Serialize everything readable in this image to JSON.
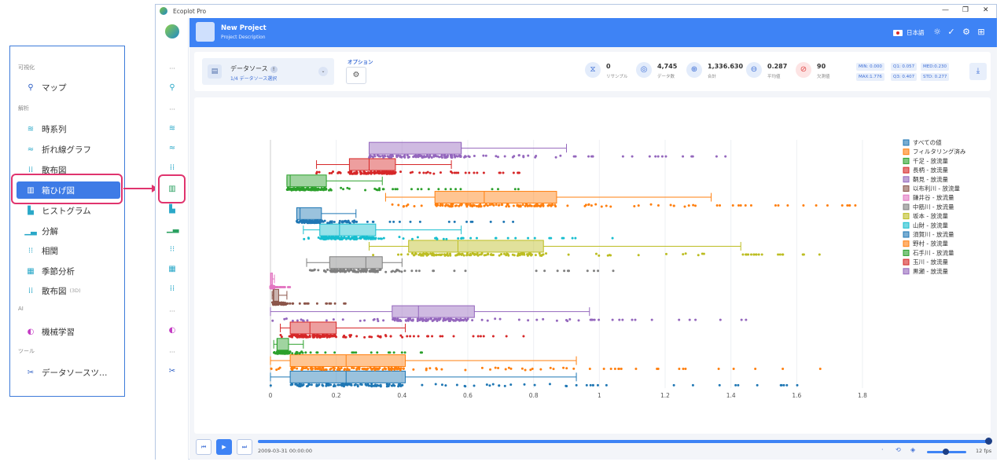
{
  "window": {
    "title": "Ecoplot Pro",
    "controls": [
      "—",
      "❐",
      "✕"
    ]
  },
  "project": {
    "title": "New Project",
    "description": "Project Description"
  },
  "header": {
    "language": "日本語"
  },
  "menu": {
    "sections": [
      {
        "label": "可視化",
        "items": [
          {
            "label": "マップ",
            "icon": "map-pin"
          }
        ]
      },
      {
        "label": "解析",
        "items": [
          {
            "label": "時系列",
            "icon": "timeseries"
          },
          {
            "label": "折れ線グラフ",
            "icon": "line"
          },
          {
            "label": "散布図",
            "icon": "scatter"
          },
          {
            "label": "箱ひげ図",
            "icon": "boxplot",
            "active": true
          },
          {
            "label": "ヒストグラム",
            "icon": "histogram"
          },
          {
            "label": "分解",
            "icon": "decompose"
          },
          {
            "label": "相関",
            "icon": "correlation"
          },
          {
            "label": "季節分析",
            "icon": "seasonal"
          },
          {
            "label": "散布図",
            "icon": "scatter3d",
            "tag": "(3D)"
          }
        ]
      },
      {
        "label": "AI",
        "items": [
          {
            "label": "機械学習",
            "icon": "ml"
          }
        ]
      },
      {
        "label": "ツール",
        "items": [
          {
            "label": "データソースツ…",
            "icon": "tools"
          }
        ]
      }
    ]
  },
  "toolbar": {
    "datasource_title": "データソース",
    "datasource_sub": "1/4 データソース選択",
    "options_label": "オプション",
    "stats": [
      {
        "value": "0",
        "label": "リサンプル",
        "icon": "resample"
      },
      {
        "value": "4,745",
        "label": "データ数",
        "icon": "count"
      },
      {
        "value": "1,336.630",
        "label": "合計",
        "icon": "sum"
      },
      {
        "value": "0.287",
        "label": "平均値",
        "icon": "mean"
      },
      {
        "value": "90",
        "label": "欠測値",
        "icon": "missing"
      }
    ],
    "chips": [
      "MIN: 0.000",
      "Q1: 0.057",
      "MED:0.230",
      "MAX:1.776",
      "Q3: 0.407",
      "STD: 0.277"
    ]
  },
  "chart_data": {
    "type": "boxplot-horizontal",
    "xlim": [
      0,
      1.8
    ],
    "xticks": [
      "0",
      "0.2",
      "0.4",
      "0.6",
      "0.8",
      "1",
      "1.2",
      "1.4",
      "1.6",
      "1.8"
    ],
    "legend_position": "right",
    "series": [
      {
        "name": "すべての値",
        "color": "#1f77b4",
        "min": 0,
        "q1": 0.06,
        "med": 0.23,
        "q3": 0.41,
        "max": 0.93,
        "outlier_max": 1.78
      },
      {
        "name": "フィルタリング済み",
        "color": "#ff7f0e",
        "min": 0,
        "q1": 0.06,
        "med": 0.23,
        "q3": 0.41,
        "max": 0.93,
        "outlier_max": 1.78
      },
      {
        "name": "千足 - 放流量",
        "color": "#2ca02c",
        "min": 0.01,
        "q1": 0.02,
        "med": 0.02,
        "q3": 0.055,
        "max": 0.1,
        "outlier_max": 0.47
      },
      {
        "name": "長柄 - 放流量",
        "color": "#d62728",
        "min": 0.03,
        "q1": 0.06,
        "med": 0.12,
        "q3": 0.2,
        "max": 0.41,
        "outlier_max": 0.77
      },
      {
        "name": "鞆見 - 放流量",
        "color": "#9467bd",
        "min": 0,
        "q1": 0.37,
        "med": 0.45,
        "q3": 0.62,
        "max": 0.97,
        "outlier_max": 1.45
      },
      {
        "name": "以布利川 - 放流量",
        "color": "#8c564b",
        "min": 0.005,
        "q1": 0.008,
        "med": 0.01,
        "q3": 0.025,
        "max": 0.05,
        "outlier_max": 0.24
      },
      {
        "name": "鎌井谷 - 放流量",
        "color": "#e377c2",
        "min": 0,
        "q1": 0,
        "med": 0.002,
        "q3": 0.006,
        "max": 0.012,
        "outlier_max": 0.06
      },
      {
        "name": "中筋川 - 放流量",
        "color": "#7f7f7f",
        "min": 0.11,
        "q1": 0.18,
        "med": 0.29,
        "q3": 0.34,
        "max": 0.4,
        "outlier_max": 1.13
      },
      {
        "name": "坂本 - 放流量",
        "color": "#bcbd22",
        "min": 0.3,
        "q1": 0.42,
        "med": 0.57,
        "q3": 0.83,
        "max": 1.43,
        "outlier_max": 1.68
      },
      {
        "name": "山財 - 放流量",
        "color": "#17becf",
        "min": 0.1,
        "q1": 0.15,
        "med": 0.21,
        "q3": 0.32,
        "max": 0.58,
        "outlier_max": 1.05
      },
      {
        "name": "須賀川 - 放流量",
        "color": "#1f77b4",
        "min": 0.08,
        "q1": 0.08,
        "med": 0.09,
        "q3": 0.155,
        "max": 0.26,
        "outlier_max": 0.77
      },
      {
        "name": "野村 - 放流量",
        "color": "#ff7f0e",
        "min": 0.35,
        "q1": 0.5,
        "med": 0.65,
        "q3": 0.87,
        "max": 1.34,
        "outlier_max": 1.78
      },
      {
        "name": "石手川 - 放流量",
        "color": "#2ca02c",
        "min": 0.05,
        "q1": 0.05,
        "med": 0.06,
        "q3": 0.17,
        "max": 0.34,
        "outlier_max": 0.78
      },
      {
        "name": "玉川 - 放流量",
        "color": "#d62728",
        "min": 0.14,
        "q1": 0.24,
        "med": 0.3,
        "q3": 0.38,
        "max": 0.55,
        "outlier_max": 0.76
      },
      {
        "name": "黒瀬 - 放流量",
        "color": "#9467bd",
        "min": 0.3,
        "q1": 0.3,
        "med": 0.58,
        "q3": 0.58,
        "max": 0.9,
        "outlier_max": 1.42
      }
    ]
  },
  "playback": {
    "timestamp": "2009-03-31 00:00:00",
    "fps": "12 fps"
  }
}
